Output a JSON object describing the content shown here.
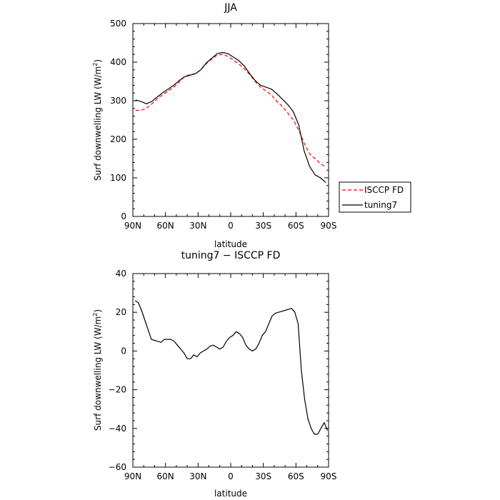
{
  "chart_data": [
    {
      "type": "line",
      "title": "JJA",
      "xlabel": "latitude",
      "ylabel": "Surf downwelling LW (W/m",
      "ylabel_sup": "2",
      "ylabel_tail": ")",
      "xlim": [
        90,
        -90
      ],
      "ylim": [
        0,
        500
      ],
      "xticks": [
        90,
        60,
        30,
        0,
        -30,
        -60,
        -90
      ],
      "xtick_labels": [
        "90N",
        "60N",
        "30N",
        "0",
        "30S",
        "60S",
        "90S"
      ],
      "yticks": [
        0,
        100,
        200,
        300,
        400,
        500
      ],
      "ytick_labels": [
        "0",
        "100",
        "200",
        "300",
        "400",
        "500"
      ],
      "legend_position": "right",
      "series": [
        {
          "name": "ISCCP FD",
          "color": "#ff0000",
          "dash": "dashed",
          "x": [
            87.5,
            82.5,
            77.5,
            72.5,
            67.5,
            62.5,
            57.5,
            52.5,
            47.5,
            42.5,
            37.5,
            32.5,
            27.5,
            22.5,
            17.5,
            12.5,
            7.5,
            2.5,
            -2.5,
            -7.5,
            -12.5,
            -17.5,
            -22.5,
            -27.5,
            -32.5,
            -37.5,
            -42.5,
            -47.5,
            -52.5,
            -57.5,
            -62.5,
            -67.5,
            -72.5,
            -77.5,
            -82.5,
            -87.5
          ],
          "y": [
            275,
            275,
            280,
            292,
            305,
            316,
            325,
            335,
            348,
            362,
            368,
            370,
            380,
            396,
            408,
            418,
            420,
            415,
            405,
            395,
            383,
            368,
            350,
            335,
            325,
            315,
            298,
            285,
            268,
            250,
            224,
            190,
            162,
            150,
            137,
            128
          ]
        },
        {
          "name": "tuning7",
          "color": "#000000",
          "dash": "solid",
          "x": [
            87.5,
            82.5,
            77.5,
            72.5,
            67.5,
            62.5,
            57.5,
            52.5,
            47.5,
            42.5,
            37.5,
            32.5,
            27.5,
            22.5,
            17.5,
            12.5,
            7.5,
            2.5,
            -2.5,
            -7.5,
            -12.5,
            -17.5,
            -22.5,
            -27.5,
            -32.5,
            -37.5,
            -42.5,
            -47.5,
            -52.5,
            -57.5,
            -62.5,
            -67.5,
            -72.5,
            -77.5,
            -82.5,
            -87.5
          ],
          "y": [
            302,
            298,
            292,
            298,
            310,
            321,
            330,
            340,
            352,
            362,
            366,
            370,
            380,
            398,
            410,
            422,
            425,
            422,
            413,
            404,
            390,
            370,
            352,
            340,
            335,
            330,
            318,
            304,
            290,
            272,
            238,
            170,
            130,
            108,
            100,
            88
          ]
        }
      ]
    },
    {
      "type": "line",
      "title": "tuning7 − ISCCP FD",
      "xlabel": "latitude",
      "ylabel": "Surf downwelling LW (W/m",
      "ylabel_sup": "2",
      "ylabel_tail": ")",
      "xlim": [
        90,
        -90
      ],
      "ylim": [
        -60,
        40
      ],
      "xticks": [
        90,
        60,
        30,
        0,
        -30,
        -60,
        -90
      ],
      "xtick_labels": [
        "90N",
        "60N",
        "30N",
        "0",
        "30S",
        "60S",
        "90S"
      ],
      "yticks": [
        -60,
        -40,
        -20,
        0,
        20,
        40
      ],
      "ytick_labels": [
        "−60",
        "−40",
        "−20",
        "0",
        "20",
        "40"
      ],
      "series": [
        {
          "color": "#000000",
          "dash": "solid",
          "x": [
            88,
            85,
            82,
            79,
            76,
            73,
            70,
            67,
            64,
            61,
            58,
            55,
            52,
            49,
            46,
            43,
            40,
            37,
            34,
            31,
            28,
            25,
            22,
            19,
            16,
            13,
            10,
            7,
            4,
            1,
            -2,
            -5,
            -8,
            -11,
            -14,
            -17,
            -20,
            -23,
            -26,
            -29,
            -32,
            -35,
            -38,
            -41,
            -44,
            -47,
            -50,
            -53,
            -56,
            -59,
            -62,
            -65,
            -68,
            -71,
            -74,
            -77,
            -80,
            -83,
            -86,
            -89
          ],
          "y": [
            26,
            25,
            21,
            16,
            11,
            6,
            5.5,
            5,
            4.5,
            6,
            6,
            6,
            5,
            3,
            1,
            -1,
            -4,
            -4,
            -2,
            -3,
            -1,
            0,
            1,
            2.5,
            3,
            2,
            1,
            2,
            5,
            7,
            8,
            10,
            9,
            7,
            3,
            1,
            0,
            1,
            4,
            8,
            10,
            14,
            18,
            19.5,
            20,
            20.5,
            21,
            21.5,
            22,
            20,
            14,
            -10,
            -25,
            -35,
            -40,
            -43,
            -43,
            -40,
            -37,
            -41
          ]
        }
      ]
    }
  ]
}
